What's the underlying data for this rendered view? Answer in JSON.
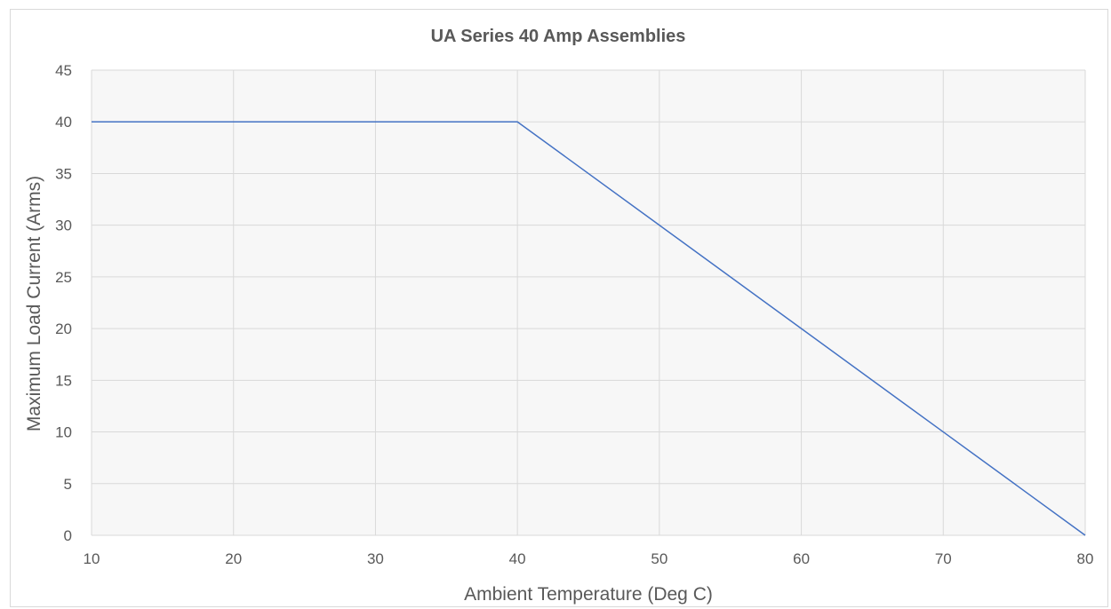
{
  "chart_data": {
    "type": "line",
    "title": "UA Series 40 Amp Assemblies",
    "xlabel": "Ambient Temperature (Deg C)",
    "ylabel": "Maximum Load Current (Arms)",
    "xlim": [
      10,
      80
    ],
    "ylim": [
      0,
      45
    ],
    "x_ticks": [
      10,
      20,
      30,
      40,
      50,
      60,
      70,
      80
    ],
    "y_ticks": [
      0,
      5,
      10,
      15,
      20,
      25,
      30,
      35,
      40,
      45
    ],
    "grid": true,
    "legend": "none",
    "series": [
      {
        "color": "#4472c4",
        "x": [
          10,
          40,
          50,
          60,
          70,
          80
        ],
        "y": [
          40,
          40,
          30,
          20,
          10,
          0
        ]
      }
    ]
  }
}
